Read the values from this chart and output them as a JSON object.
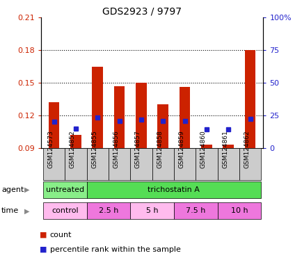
{
  "title": "GDS2923 / 9797",
  "samples": [
    "GSM124573",
    "GSM124852",
    "GSM124855",
    "GSM124856",
    "GSM124857",
    "GSM124858",
    "GSM124859",
    "GSM124860",
    "GSM124861",
    "GSM124862"
  ],
  "bar_top": [
    0.132,
    0.102,
    0.165,
    0.147,
    0.15,
    0.13,
    0.146,
    0.093,
    0.093,
    0.18
  ],
  "bar_bottom": [
    0.09,
    0.09,
    0.09,
    0.09,
    0.09,
    0.09,
    0.09,
    0.09,
    0.09,
    0.09
  ],
  "blue_dot_y": [
    0.114,
    0.108,
    0.118,
    0.115,
    0.116,
    0.115,
    0.115,
    0.107,
    0.107,
    0.117
  ],
  "ylim_left": [
    0.09,
    0.21
  ],
  "ylim_right": [
    0,
    100
  ],
  "yticks_left": [
    0.09,
    0.12,
    0.15,
    0.18,
    0.21
  ],
  "yticks_right": [
    0,
    25,
    50,
    75,
    100
  ],
  "ytick_labels_left": [
    "0.09",
    "0.12",
    "0.15",
    "0.18",
    "0.21"
  ],
  "ytick_labels_right": [
    "0",
    "25",
    "50",
    "75",
    "100%"
  ],
  "hlines": [
    0.12,
    0.15,
    0.18
  ],
  "bar_color": "#cc2200",
  "dot_color": "#2222cc",
  "agent_groups": [
    {
      "label": "untreated",
      "start": 0,
      "end": 2,
      "color": "#88ee88"
    },
    {
      "label": "trichostatin A",
      "start": 2,
      "end": 10,
      "color": "#55dd55"
    }
  ],
  "time_groups": [
    {
      "label": "control",
      "start": 0,
      "end": 2,
      "color": "#ffbbee"
    },
    {
      "label": "2.5 h",
      "start": 2,
      "end": 4,
      "color": "#ee77dd"
    },
    {
      "label": "5 h",
      "start": 4,
      "end": 6,
      "color": "#ffbbee"
    },
    {
      "label": "7.5 h",
      "start": 6,
      "end": 8,
      "color": "#ee77dd"
    },
    {
      "label": "10 h",
      "start": 8,
      "end": 10,
      "color": "#ee77dd"
    }
  ],
  "legend_count_color": "#cc2200",
  "legend_pct_color": "#2222cc",
  "left_ytick_color": "#cc2200",
  "right_ytick_color": "#2222cc",
  "xtick_bg_color": "#cccccc",
  "bar_width": 0.5
}
